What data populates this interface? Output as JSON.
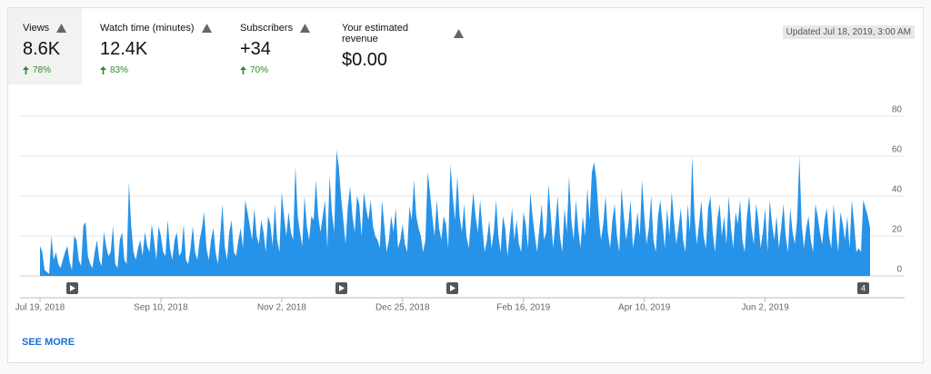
{
  "metrics": [
    {
      "label": "Views",
      "value": "8.6K",
      "change": "78%"
    },
    {
      "label": "Watch time (minutes)",
      "value": "12.4K",
      "change": "83%"
    },
    {
      "label": "Subscribers",
      "value": "+34",
      "change": "70%"
    },
    {
      "label": "Your estimated revenue",
      "value": "$0.00"
    }
  ],
  "updated": "Updated Jul 18, 2019, 3:00 AM",
  "see_more": "SEE MORE",
  "chart_data": {
    "type": "area",
    "color": "#2793e8",
    "grid": true,
    "ylim": [
      0,
      80
    ],
    "yticks": [
      0,
      20,
      40,
      60,
      80
    ],
    "annotation": "4",
    "categories": [
      "Jul 19, 2018",
      null,
      null,
      null,
      null,
      null,
      null,
      null,
      null,
      null,
      null,
      null,
      null,
      null,
      null,
      null,
      null,
      null,
      null,
      null,
      null,
      null,
      null,
      null,
      null,
      null,
      null,
      null,
      null,
      null,
      null,
      null,
      null,
      null,
      null,
      null,
      null,
      null,
      null,
      null,
      null,
      null,
      null,
      null,
      null,
      null,
      null,
      null,
      null,
      null,
      null,
      null,
      null,
      "Sep 10, 2018",
      null,
      null,
      null,
      null,
      null,
      null,
      null,
      null,
      null,
      null,
      null,
      null,
      null,
      null,
      null,
      null,
      null,
      null,
      null,
      null,
      null,
      null,
      null,
      null,
      null,
      null,
      null,
      null,
      null,
      null,
      null,
      null,
      null,
      null,
      null,
      null,
      null,
      null,
      null,
      null,
      null,
      null,
      null,
      null,
      null,
      null,
      null,
      null,
      null,
      null,
      null,
      null,
      "Nov 2, 2018",
      null,
      null,
      null,
      null,
      null,
      null,
      null,
      null,
      null,
      null,
      null,
      null,
      null,
      null,
      null,
      null,
      null,
      null,
      null,
      null,
      null,
      null,
      null,
      null,
      null,
      null,
      null,
      null,
      null,
      null,
      null,
      null,
      null,
      null,
      null,
      null,
      null,
      null,
      null,
      null,
      null,
      null,
      null,
      null,
      null,
      null,
      null,
      null,
      null,
      null,
      null,
      null,
      "Dec 25, 2018",
      null,
      null,
      null,
      null,
      null,
      null,
      null,
      null,
      null,
      null,
      null,
      null,
      null,
      null,
      null,
      null,
      null,
      null,
      null,
      null,
      null,
      null,
      null,
      null,
      null,
      null,
      null,
      null,
      null,
      null,
      null,
      null,
      null,
      null,
      null,
      null,
      null,
      null,
      null,
      null,
      null,
      null,
      null,
      null,
      null,
      null,
      null,
      null,
      null,
      null,
      null,
      null,
      "Feb 16, 2019",
      null,
      null,
      null,
      null,
      null,
      null,
      null,
      null,
      null,
      null,
      null,
      null,
      null,
      null,
      null,
      null,
      null,
      null,
      null,
      null,
      null,
      null,
      null,
      null,
      null,
      null,
      null,
      null,
      null,
      null,
      null,
      null,
      null,
      null,
      null,
      null,
      null,
      null,
      null,
      null,
      null,
      null,
      null,
      null,
      null,
      null,
      null,
      null,
      null,
      null,
      null,
      null,
      "Apr 10, 2019",
      null,
      null,
      null,
      null,
      null,
      null,
      null,
      null,
      null,
      null,
      null,
      null,
      null,
      null,
      null,
      null,
      null,
      null,
      null,
      null,
      null,
      null,
      null,
      null,
      null,
      null,
      null,
      null,
      null,
      null,
      null,
      null,
      null,
      null,
      null,
      null,
      null,
      null,
      null,
      null,
      null,
      null,
      null,
      null,
      null,
      null,
      null,
      null,
      null,
      null,
      null,
      null,
      "Jun 2, 2019",
      null,
      null,
      null,
      null,
      null,
      null,
      null,
      null,
      null,
      null,
      null,
      null,
      null,
      null,
      null,
      null,
      null,
      null,
      null,
      null,
      null,
      null,
      null,
      null,
      null,
      null,
      null,
      null,
      null,
      null,
      null,
      null,
      null,
      null,
      null,
      null,
      null,
      null,
      null,
      null,
      null,
      null,
      null,
      null,
      null,
      null
    ],
    "values": [
      15,
      12,
      3,
      2,
      1,
      20,
      8,
      12,
      6,
      4,
      8,
      12,
      15,
      7,
      3,
      20,
      18,
      8,
      5,
      25,
      27,
      10,
      6,
      4,
      12,
      18,
      8,
      5,
      22,
      15,
      10,
      12,
      25,
      6,
      4,
      18,
      22,
      8,
      6,
      47,
      25,
      12,
      8,
      14,
      18,
      10,
      22,
      15,
      12,
      26,
      18,
      8,
      25,
      20,
      12,
      10,
      28,
      14,
      8,
      18,
      22,
      10,
      12,
      26,
      8,
      6,
      14,
      25,
      12,
      8,
      18,
      24,
      32,
      14,
      8,
      18,
      24,
      12,
      6,
      20,
      36,
      15,
      8,
      22,
      28,
      12,
      10,
      18,
      24,
      14,
      38,
      32,
      25,
      18,
      34,
      20,
      16,
      28,
      22,
      12,
      30,
      26,
      15,
      36,
      18,
      12,
      42,
      30,
      20,
      32,
      22,
      18,
      55,
      30,
      22,
      15,
      40,
      25,
      18,
      30,
      28,
      48,
      30,
      22,
      30,
      38,
      14,
      50,
      32,
      22,
      63,
      55,
      40,
      28,
      16,
      35,
      45,
      30,
      22,
      40,
      36,
      20,
      42,
      34,
      28,
      38,
      25,
      20,
      18,
      14,
      38,
      25,
      12,
      18,
      30,
      22,
      34,
      14,
      18,
      26,
      16,
      12,
      35,
      28,
      48,
      30,
      24,
      20,
      12,
      18,
      52,
      42,
      30,
      20,
      38,
      24,
      18,
      30,
      26,
      14,
      56,
      40,
      28,
      50,
      30,
      22,
      36,
      20,
      14,
      28,
      42,
      30,
      22,
      38,
      24,
      12,
      18,
      28,
      14,
      22,
      38,
      20,
      12,
      30,
      24,
      10,
      22,
      34,
      18,
      28,
      16,
      12,
      32,
      26,
      14,
      42,
      30,
      20,
      12,
      24,
      36,
      18,
      22,
      46,
      30,
      14,
      26,
      40,
      20,
      12,
      34,
      22,
      50,
      28,
      18,
      38,
      24,
      14,
      30,
      20,
      44,
      28,
      52,
      57,
      48,
      30,
      18,
      26,
      40,
      22,
      14,
      28,
      36,
      20,
      12,
      44,
      30,
      18,
      26,
      38,
      14,
      22,
      32,
      20,
      48,
      30,
      16,
      24,
      40,
      18,
      12,
      30,
      38,
      26,
      14,
      34,
      20,
      42,
      28,
      16,
      24,
      34,
      18,
      12,
      36,
      22,
      60,
      30,
      16,
      26,
      38,
      20,
      14,
      34,
      40,
      22,
      12,
      28,
      36,
      20,
      30,
      16,
      40,
      24,
      14,
      32,
      26,
      38,
      18,
      12,
      30,
      40,
      24,
      16,
      36,
      28,
      14,
      22,
      34,
      12,
      38,
      26,
      18,
      30,
      14,
      24,
      36,
      20,
      12,
      34,
      22,
      16,
      28,
      60,
      26,
      14,
      24,
      30,
      18,
      12,
      36,
      30,
      22,
      16,
      28,
      34,
      20,
      14,
      36,
      24,
      12,
      32,
      26,
      18,
      30,
      14,
      38,
      26,
      12,
      14,
      12,
      38,
      34,
      30,
      24
    ]
  }
}
